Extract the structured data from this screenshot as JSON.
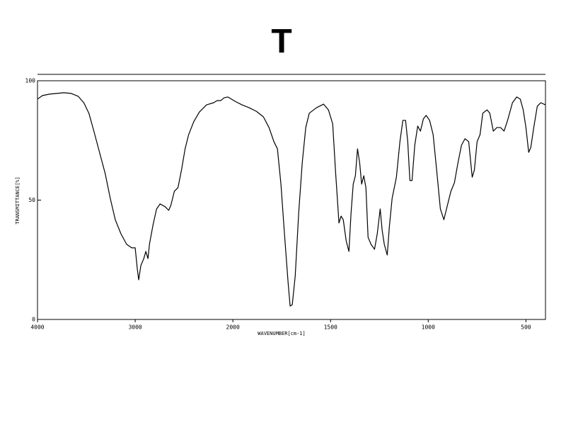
{
  "chart_data": {
    "type": "line",
    "title": "T",
    "x_label": "WAVENUMBER[cm-1]",
    "y_label": "TRANSMITTANCE[%]",
    "color": "#000000",
    "xlim": [
      4000,
      400
    ],
    "ylim": [
      0,
      100
    ],
    "xticks": [
      4000,
      3000,
      2000,
      1500,
      1000,
      500
    ],
    "yticks": [
      0,
      50,
      100
    ],
    "x": [
      4000,
      3949,
      3876,
      3803,
      3730,
      3657,
      3584,
      3526,
      3474,
      3423,
      3365,
      3307,
      3255,
      3204,
      3146,
      3088,
      3036,
      3000,
      2978,
      2964,
      2942,
      2912,
      2891,
      2869,
      2854,
      2818,
      2781,
      2745,
      2693,
      2657,
      2635,
      2599,
      2562,
      2526,
      2489,
      2453,
      2401,
      2343,
      2270,
      2197,
      2161,
      2124,
      2088,
      2051,
      1989,
      1953,
      1917,
      1880,
      1844,
      1815,
      1790,
      1772,
      1754,
      1736,
      1717,
      1707,
      1696,
      1681,
      1663,
      1645,
      1627,
      1609,
      1572,
      1536,
      1511,
      1489,
      1475,
      1457,
      1446,
      1435,
      1420,
      1406,
      1395,
      1384,
      1373,
      1362,
      1351,
      1341,
      1330,
      1319,
      1308,
      1293,
      1275,
      1261,
      1246,
      1236,
      1225,
      1210,
      1199,
      1185,
      1163,
      1145,
      1130,
      1116,
      1105,
      1094,
      1083,
      1069,
      1054,
      1040,
      1025,
      1011,
      993,
      975,
      957,
      938,
      920,
      902,
      884,
      866,
      848,
      830,
      812,
      793,
      775,
      764,
      750,
      735,
      721,
      699,
      685,
      667,
      649,
      630,
      612,
      594,
      569,
      547,
      529,
      514,
      500,
      486,
      475,
      460,
      442,
      424,
      400
    ],
    "values": [
      92.3,
      93.8,
      94.4,
      94.7,
      95.0,
      94.7,
      93.5,
      90.8,
      86.4,
      78.9,
      70.0,
      61.1,
      50.7,
      41.8,
      35.9,
      31.5,
      30.0,
      30.0,
      21.1,
      16.6,
      22.6,
      25.5,
      28.5,
      25.5,
      31.5,
      39.5,
      46.3,
      48.4,
      47.2,
      45.7,
      47.8,
      53.7,
      55.2,
      62.6,
      71.5,
      77.4,
      82.8,
      86.9,
      89.9,
      90.8,
      91.7,
      91.7,
      92.9,
      93.2,
      91.4,
      89.9,
      88.7,
      87.2,
      84.9,
      80.4,
      74.5,
      71.5,
      56.7,
      35.9,
      15.1,
      5.6,
      6.2,
      18.1,
      44.8,
      65.6,
      80.4,
      86.4,
      88.7,
      90.2,
      87.8,
      81.9,
      62.6,
      40.4,
      43.3,
      41.8,
      32.9,
      28.5,
      44.8,
      56.7,
      60.2,
      71.5,
      65.6,
      56.7,
      60.2,
      55.2,
      34.4,
      31.5,
      29.4,
      35.9,
      46.3,
      37.4,
      31.5,
      27.0,
      38.9,
      50.7,
      59.6,
      74.5,
      83.4,
      83.4,
      74.5,
      58.2,
      58.2,
      73.0,
      81.0,
      78.9,
      84.0,
      85.5,
      83.4,
      77.4,
      62.6,
      46.3,
      41.8,
      47.8,
      53.7,
      57.3,
      65.6,
      73.0,
      75.7,
      74.5,
      59.6,
      62.6,
      74.5,
      77.4,
      86.4,
      87.8,
      86.4,
      78.9,
      80.4,
      80.4,
      78.9,
      83.4,
      90.8,
      93.2,
      92.3,
      87.8,
      80.4,
      70.0,
      72.1,
      80.4,
      89.3,
      90.8,
      89.9
    ]
  }
}
